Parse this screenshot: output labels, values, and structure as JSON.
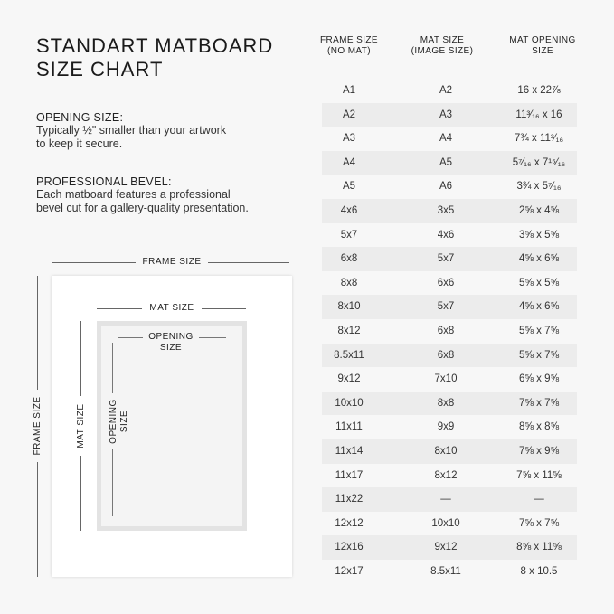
{
  "title_lines": [
    "STANDART MATBOARD",
    "SIZE CHART"
  ],
  "notes": [
    {
      "heading": "OPENING SIZE:",
      "lines": [
        "Typically ½\" smaller than your artwork",
        "to keep it secure."
      ]
    },
    {
      "heading": "PROFESSIONAL BEVEL:",
      "lines": [
        "Each matboard features a professional",
        "bevel cut for a gallery-quality presentation."
      ]
    }
  ],
  "diagram": {
    "frame_size": "FRAME SIZE",
    "mat_size": "MAT SIZE",
    "opening_size_1": "OPENING",
    "opening_size_2": "SIZE"
  },
  "table": {
    "headers": [
      [
        "FRAME SIZE",
        "(NO MAT)"
      ],
      [
        "MAT SIZE",
        "(IMAGE SIZE)"
      ],
      [
        "MAT OPENING",
        "SIZE"
      ]
    ],
    "rows": [
      [
        "A1",
        "A2",
        "16 x 22⅞"
      ],
      [
        "A2",
        "A3",
        "11³⁄₁₆ x 16"
      ],
      [
        "A3",
        "A4",
        "7¾ x 11³⁄₁₆"
      ],
      [
        "A4",
        "A5",
        "5⁷⁄₁₆ x 7¹⁵⁄₁₆"
      ],
      [
        "A5",
        "A6",
        "3¾ x 5⁷⁄₁₆"
      ],
      [
        "4x6",
        "3x5",
        "2⅝ x 4⅝"
      ],
      [
        "5x7",
        "4x6",
        "3⅝ x 5⅝"
      ],
      [
        "6x8",
        "5x7",
        "4⅝ x 6⅝"
      ],
      [
        "8x8",
        "6x6",
        "5⅝ x 5⅝"
      ],
      [
        "8x10",
        "5x7",
        "4⅝ x 6⅝"
      ],
      [
        "8x12",
        "6x8",
        "5⅝ x 7⅝"
      ],
      [
        "8.5x11",
        "6x8",
        "5⅝ x 7⅝"
      ],
      [
        "9x12",
        "7x10",
        "6⅝ x 9⅝"
      ],
      [
        "10x10",
        "8x8",
        "7⅝ x 7⅝"
      ],
      [
        "11x11",
        "9x9",
        "8⅝ x 8⅝"
      ],
      [
        "11x14",
        "8x10",
        "7⅝ x 9⅝"
      ],
      [
        "11x17",
        "8x12",
        "7⅝ x 11⅝"
      ],
      [
        "11x22",
        "—",
        "—"
      ],
      [
        "12x12",
        "10x10",
        "7⅝ x 7⅝"
      ],
      [
        "12x16",
        "9x12",
        "8⅝ x 11⅝"
      ],
      [
        "12x17",
        "8.5x11",
        "8 x 10.5"
      ]
    ]
  }
}
